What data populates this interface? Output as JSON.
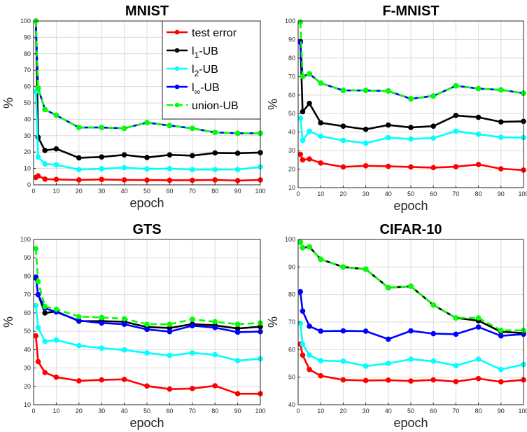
{
  "chart_data": [
    {
      "type": "line",
      "title": "MNIST",
      "xlabel": "epoch",
      "ylabel": "%",
      "xlim": [
        0,
        100
      ],
      "ylim": [
        0,
        100
      ],
      "xticks": [
        0,
        10,
        20,
        30,
        40,
        50,
        60,
        70,
        80,
        90,
        100
      ],
      "yticks": [
        0,
        10,
        20,
        30,
        40,
        50,
        60,
        70,
        80,
        90,
        100
      ],
      "grid": true,
      "legend": "top-right",
      "x": [
        1,
        2,
        5,
        10,
        20,
        30,
        40,
        50,
        60,
        70,
        80,
        90,
        100
      ],
      "series": [
        {
          "name": "test error",
          "color": "#ff0000",
          "dash": false,
          "values": [
            4.5,
            5.5,
            3.5,
            3.3,
            3.0,
            3.3,
            3.0,
            2.9,
            2.8,
            2.8,
            3.0,
            2.6,
            3.0
          ]
        },
        {
          "name": "l_1-UB",
          "color": "#000000",
          "dash": false,
          "values": [
            100,
            29,
            21,
            22,
            16.5,
            17,
            18.3,
            16.7,
            18.3,
            17.8,
            19.5,
            19.3,
            19.7
          ]
        },
        {
          "name": "l_2-UB",
          "color": "#00ffff",
          "dash": false,
          "values": [
            57,
            17,
            12.8,
            12.2,
            9.3,
            9.8,
            10.5,
            9.7,
            9.9,
            9.3,
            9.3,
            9.4,
            10.9
          ]
        },
        {
          "name": "l_∞-UB",
          "color": "#0000ff",
          "dash": false,
          "values": [
            100,
            59,
            46,
            42.5,
            35,
            35,
            34.5,
            38,
            36.2,
            34.5,
            32,
            31.5,
            31.5
          ]
        },
        {
          "name": "union-UB",
          "color": "#00ff00",
          "dash": true,
          "values": [
            100,
            59,
            46,
            42.5,
            35,
            35,
            34.5,
            38,
            36.2,
            34.5,
            32,
            31.5,
            31.5
          ]
        }
      ]
    },
    {
      "type": "line",
      "title": "F-MNIST",
      "xlabel": "epoch",
      "ylabel": "%",
      "xlim": [
        0,
        100
      ],
      "ylim": [
        10,
        100
      ],
      "xticks": [
        0,
        10,
        20,
        30,
        40,
        50,
        60,
        70,
        80,
        90,
        100
      ],
      "yticks": [
        10,
        20,
        30,
        40,
        50,
        60,
        70,
        80,
        90,
        100
      ],
      "grid": true,
      "x": [
        1,
        2,
        5,
        10,
        20,
        30,
        40,
        50,
        60,
        70,
        80,
        90,
        100
      ],
      "series": [
        {
          "name": "test error",
          "color": "#ff0000",
          "dash": false,
          "values": [
            28,
            25,
            25.5,
            23.3,
            21.2,
            21.8,
            21.5,
            21.2,
            20.8,
            21.3,
            22.5,
            20.2,
            19.5
          ]
        },
        {
          "name": "l_1-UB",
          "color": "#000000",
          "dash": false,
          "values": [
            89,
            51,
            55.5,
            45,
            43.2,
            41.5,
            43.8,
            42.5,
            43.2,
            49,
            48,
            45.5,
            45.8
          ]
        },
        {
          "name": "l_2-UB",
          "color": "#00ffff",
          "dash": false,
          "values": [
            47.5,
            35.5,
            40.5,
            37.8,
            35.5,
            34,
            37,
            36.3,
            36.8,
            40.5,
            38.8,
            37.2,
            37
          ]
        },
        {
          "name": "l_∞-UB",
          "color": "#0000ff",
          "dash": false,
          "values": [
            88.5,
            70,
            71.5,
            66.5,
            62.5,
            62.5,
            62.2,
            58,
            59.5,
            65,
            63.5,
            62.8,
            61
          ]
        },
        {
          "name": "union-UB",
          "color": "#00ff00",
          "dash": true,
          "values": [
            99.5,
            70,
            71.5,
            66.5,
            62.5,
            62.5,
            62.2,
            58,
            59.5,
            65,
            63.5,
            62.8,
            61
          ]
        }
      ]
    },
    {
      "type": "line",
      "title": "GTS",
      "xlabel": "epoch",
      "ylabel": "%",
      "xlim": [
        0,
        100
      ],
      "ylim": [
        10,
        100
      ],
      "xticks": [
        0,
        10,
        20,
        30,
        40,
        50,
        60,
        70,
        80,
        90,
        100
      ],
      "yticks": [
        10,
        20,
        30,
        40,
        50,
        60,
        70,
        80,
        90,
        100
      ],
      "grid": true,
      "x": [
        1,
        2,
        5,
        10,
        20,
        30,
        40,
        50,
        60,
        70,
        80,
        90,
        100
      ],
      "series": [
        {
          "name": "test error",
          "color": "#ff0000",
          "dash": false,
          "values": [
            47.5,
            33.5,
            27.5,
            25,
            23,
            23.5,
            23.8,
            20.2,
            18.5,
            18.8,
            20.3,
            16,
            16
          ]
        },
        {
          "name": "l_1-UB",
          "color": "#000000",
          "dash": false,
          "values": [
            79,
            70,
            60,
            60.8,
            55.5,
            55.5,
            55.2,
            52.3,
            51.8,
            53.9,
            53.2,
            51.5,
            52.5
          ]
        },
        {
          "name": "l_2-UB",
          "color": "#00ffff",
          "dash": false,
          "values": [
            64,
            52,
            44.5,
            45.2,
            42.2,
            40.8,
            39.8,
            38.2,
            36.8,
            38.2,
            37.2,
            34,
            35
          ]
        },
        {
          "name": "l_∞-UB",
          "color": "#0000ff",
          "dash": false,
          "values": [
            79.5,
            70,
            62.5,
            60.5,
            55.8,
            54.5,
            53.8,
            51,
            49.8,
            53,
            52,
            49.5,
            49.8
          ]
        },
        {
          "name": "union-UB",
          "color": "#00ff00",
          "dash": true,
          "values": [
            95,
            77,
            63.5,
            62,
            58,
            57.5,
            56.8,
            53.8,
            53.8,
            56.5,
            55.2,
            53.8,
            54.5
          ]
        }
      ]
    },
    {
      "type": "line",
      "title": "CIFAR-10",
      "xlabel": "epoch",
      "ylabel": "%",
      "xlim": [
        0,
        100
      ],
      "ylim": [
        40,
        100
      ],
      "xticks": [
        0,
        10,
        20,
        30,
        40,
        50,
        60,
        70,
        80,
        90,
        100
      ],
      "yticks": [
        40,
        50,
        60,
        70,
        80,
        90,
        100
      ],
      "grid": true,
      "x": [
        1,
        2,
        5,
        10,
        20,
        30,
        40,
        50,
        60,
        70,
        80,
        90,
        100
      ],
      "series": [
        {
          "name": "test error",
          "color": "#ff0000",
          "dash": false,
          "values": [
            62,
            58,
            52.8,
            50.5,
            49,
            48.8,
            48.9,
            48.6,
            49,
            48.4,
            49.5,
            48.3,
            49
          ]
        },
        {
          "name": "l_1-UB",
          "color": "#000000",
          "dash": false,
          "values": [
            99,
            97,
            97.3,
            92.8,
            90,
            89.2,
            82.5,
            83,
            76.2,
            71.5,
            70.5,
            66.5,
            66
          ]
        },
        {
          "name": "l_2-UB",
          "color": "#00ffff",
          "dash": false,
          "values": [
            69.5,
            62,
            58,
            56,
            55.8,
            54,
            55,
            56.5,
            55.8,
            54.2,
            56.5,
            52.8,
            54.6
          ]
        },
        {
          "name": "l_∞-UB",
          "color": "#0000ff",
          "dash": false,
          "values": [
            81,
            74,
            68.5,
            66.7,
            66.8,
            66.7,
            63.8,
            66.8,
            65.8,
            65.6,
            68.2,
            65,
            65.6
          ]
        },
        {
          "name": "union-UB",
          "color": "#00ff00",
          "dash": true,
          "values": [
            99,
            97,
            97.3,
            92.8,
            90,
            89.2,
            82.5,
            83,
            76.2,
            71.5,
            71.5,
            67,
            67
          ]
        }
      ]
    }
  ]
}
